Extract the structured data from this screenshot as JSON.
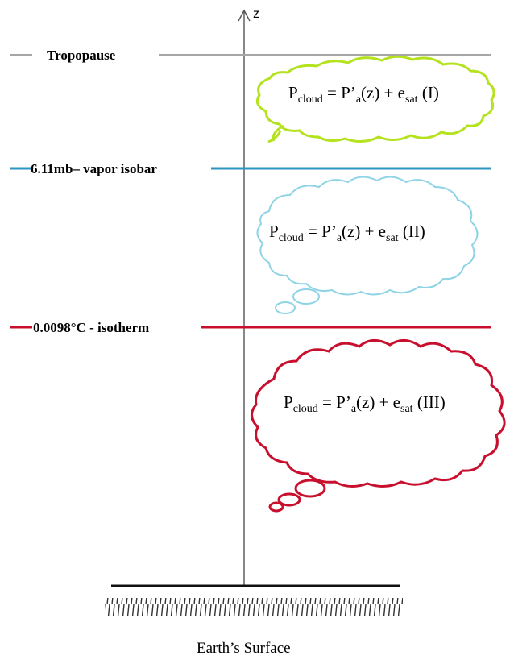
{
  "axis": {
    "label": "z"
  },
  "levels": {
    "tropopause": {
      "label": "Tropopause",
      "color": "#a6a6a6"
    },
    "vapor_isobar": {
      "label": "6.11mb– vapor isobar",
      "color": "#2e95c2"
    },
    "isotherm": {
      "label": "0.0098°C - isotherm",
      "color": "#c8102e"
    }
  },
  "clouds": [
    {
      "name": "cloud-I",
      "color": "#b5e21e",
      "eq": {
        "p": "P",
        "p_sub": "cloud",
        "mid": " = P’",
        "a_sub": "a",
        "z": "(z) + e",
        "e_sub": "sat",
        "tag": " (I)"
      }
    },
    {
      "name": "cloud-II",
      "color": "#8fd4e6",
      "eq": {
        "p": "P",
        "p_sub": "cloud",
        "mid": " = P’",
        "a_sub": "a",
        "z": "(z) + e",
        "e_sub": "sat",
        "tag": " (II)"
      }
    },
    {
      "name": "cloud-III",
      "color": "#c8102e",
      "eq": {
        "p": "P",
        "p_sub": "cloud",
        "mid": " = P’",
        "a_sub": "a",
        "z": "(z) + e",
        "e_sub": "sat",
        "tag": " (III)"
      }
    }
  ],
  "surface": {
    "label": "Earth’s Surface"
  }
}
